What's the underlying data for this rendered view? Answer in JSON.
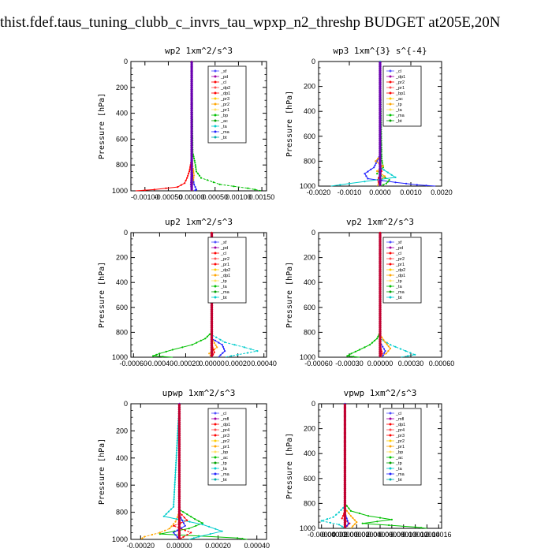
{
  "page_title": "thist.fdef.taus_tuning_clubb_c_invrs_tau_wpxp_n2_threshp  BUDGET at205E,20N",
  "chart_data": [
    {
      "type": "line",
      "title": "wp2  1xm^2/s^3",
      "ylabel": "Pressure [hPa]",
      "ylim": [
        1000,
        0
      ],
      "yticks": [
        "0",
        "200",
        "400",
        "600",
        "800",
        "1000"
      ],
      "xticks": [
        "-0.00100",
        "-0.00050",
        "0.00000",
        "0.00050",
        "0.00100",
        "0.00150"
      ],
      "xlim": [
        -0.0013,
        0.0016
      ],
      "legend": [
        "_sf",
        "_pd",
        "_cl",
        "_dp2",
        "_dp1",
        "_pr3",
        "_pr2",
        "_pr1",
        "_bp",
        "_ac",
        "_ta",
        "_ma",
        "_bt"
      ],
      "legend_position": "top-right",
      "series": [
        {
          "color": "#2020ff",
          "y": [
            0,
            700,
            880,
            950,
            990,
            1000
          ],
          "x": [
            0,
            0,
            2e-05,
            5e-05,
            0.0001,
            5e-05
          ]
        },
        {
          "color": "#00c000",
          "y": [
            0,
            700,
            800,
            850,
            900,
            950,
            980,
            1000
          ],
          "x": [
            0,
            2e-05,
            8e-05,
            0.0001,
            0.0002,
            0.0006,
            0.0012,
            0.0015
          ]
        },
        {
          "color": "#ff0000",
          "y": [
            0,
            750,
            850,
            900,
            940,
            970,
            990,
            1000
          ],
          "x": [
            0,
            0,
            -5e-05,
            -0.0001,
            -0.00015,
            -0.0003,
            -0.0008,
            -0.0012
          ]
        },
        {
          "color": "#ffa500",
          "y": [
            0,
            750,
            830,
            880,
            920,
            960,
            1000
          ],
          "x": [
            0,
            0,
            3e-05,
            5e-05,
            3e-05,
            1e-05,
            0
          ]
        },
        {
          "color": "#8000c0",
          "y": [
            0,
            850,
            950,
            1000
          ],
          "x": [
            0,
            0,
            -2e-05,
            0
          ]
        }
      ]
    },
    {
      "type": "line",
      "title": "wp3  1xm^{3} s^{-4}",
      "ylabel": "Pressure [hPa]",
      "ylim": [
        1000,
        0
      ],
      "yticks": [
        "0",
        "200",
        "400",
        "600",
        "800",
        "1000"
      ],
      "xticks": [
        "-0.0020",
        "-0.0010",
        "0.0000",
        "0.0010",
        "0.0020"
      ],
      "xlim": [
        -0.002,
        0.002
      ],
      "legend": [
        "_cl",
        "_dp1",
        "_pr2",
        "_pr1",
        "_bp1",
        "_ac",
        "_tp",
        "_ta",
        "_ma",
        "_bt"
      ],
      "legend_position": "top-right",
      "series": [
        {
          "color": "#2020ff",
          "y": [
            0,
            750,
            850,
            900,
            940,
            970,
            990,
            1000
          ],
          "x": [
            0,
            0,
            -0.0002,
            -0.0005,
            -0.0004,
            0.0005,
            0.0012,
            0.0018
          ]
        },
        {
          "color": "#00c000",
          "y": [
            0,
            780,
            850,
            900,
            950,
            980,
            1000
          ],
          "x": [
            0,
            5e-05,
            0.0001,
            -0.0001,
            0.0003,
            0.0002,
            0
          ]
        },
        {
          "color": "#ffa500",
          "y": [
            0,
            760,
            800,
            840,
            880,
            920,
            960,
            1000
          ],
          "x": [
            0,
            0,
            -0.00015,
            0.0001,
            -0.0001,
            0.00015,
            0,
            -0.0001
          ]
        },
        {
          "color": "#ff0000",
          "y": [
            0,
            800,
            880,
            950,
            1000
          ],
          "x": [
            0,
            0,
            5e-05,
            -8e-05,
            0
          ]
        },
        {
          "color": "#00cccc",
          "y": [
            0,
            850,
            930,
            980,
            1000
          ],
          "x": [
            0,
            0,
            0.0005,
            -0.001,
            -0.0016
          ]
        }
      ]
    },
    {
      "type": "line",
      "title": "up2  1xm^2/s^3",
      "ylabel": "Pressure [hPa]",
      "ylim": [
        1000,
        0
      ],
      "yticks": [
        "0",
        "200",
        "400",
        "600",
        "800",
        "1000"
      ],
      "xticks": [
        "-0.00060",
        "-0.00040",
        "-0.00020",
        "0.00000",
        "0.00020",
        "0.00040"
      ],
      "xlim": [
        -0.00062,
        0.00042
      ],
      "legend": [
        "_sf",
        "_pd",
        "_cl",
        "_pr2",
        "_pr1",
        "_dp2",
        "_dp1",
        "_tp",
        "_ta",
        "_ma",
        "_bt"
      ],
      "legend_position": "top-right",
      "series": [
        {
          "color": "#00c000",
          "y": [
            0,
            800,
            850,
            900,
            940,
            970,
            990,
            1000
          ],
          "x": [
            0,
            0,
            -5e-05,
            -0.00015,
            -0.0003,
            -0.0004,
            -0.00045,
            -0.0003
          ]
        },
        {
          "color": "#00cccc",
          "y": [
            0,
            820,
            880,
            920,
            950,
            980,
            1000
          ],
          "x": [
            0,
            0,
            0.0001,
            0.00025,
            0.00035,
            0.0002,
            0.0001
          ]
        },
        {
          "color": "#2020ff",
          "y": [
            0,
            850,
            900,
            950,
            1000
          ],
          "x": [
            0,
            0,
            8e-05,
            0.0001,
            5e-05
          ]
        },
        {
          "color": "#ffa500",
          "y": [
            0,
            850,
            920,
            970,
            1000
          ],
          "x": [
            0,
            0,
            4e-05,
            -2e-05,
            0
          ]
        },
        {
          "color": "#ff0000",
          "y": [
            0,
            900,
            960,
            1000
          ],
          "x": [
            0,
            0,
            2e-05,
            0
          ]
        }
      ]
    },
    {
      "type": "line",
      "title": "vp2  1xm^2/s^3",
      "ylabel": "Pressure [hPa]",
      "ylim": [
        1000,
        0
      ],
      "yticks": [
        "0",
        "200",
        "400",
        "600",
        "800",
        "1000"
      ],
      "xticks": [
        "-0.00060",
        "-0.00030",
        "0.00000",
        "0.00030",
        "0.00060"
      ],
      "xlim": [
        -0.0006,
        0.0006
      ],
      "legend": [
        "_sf",
        "_pd",
        "_cl",
        "_pr2",
        "_pr1",
        "_dp2",
        "_dp1",
        "_tp",
        "_ta",
        "_ma",
        "_bt"
      ],
      "legend_position": "top-right",
      "series": [
        {
          "color": "#00c000",
          "y": [
            0,
            800,
            850,
            900,
            940,
            970,
            990,
            1000
          ],
          "x": [
            0,
            0,
            -3e-05,
            -0.0001,
            -0.0002,
            -0.00028,
            -0.00032,
            -0.0002
          ]
        },
        {
          "color": "#00cccc",
          "y": [
            0,
            850,
            900,
            950,
            980,
            1000
          ],
          "x": [
            0,
            0,
            0.0001,
            0.00025,
            0.00034,
            0.0002
          ]
        },
        {
          "color": "#ffa500",
          "y": [
            0,
            820,
            880,
            930,
            970,
            1000
          ],
          "x": [
            0,
            0,
            5e-05,
            0.0001,
            6e-05,
            0
          ]
        },
        {
          "color": "#2020ff",
          "y": [
            0,
            880,
            950,
            1000
          ],
          "x": [
            0,
            0,
            5e-05,
            2e-05
          ]
        },
        {
          "color": "#ff0000",
          "y": [
            0,
            900,
            970,
            1000
          ],
          "x": [
            0,
            0,
            2e-05,
            0
          ]
        }
      ]
    },
    {
      "type": "line",
      "title": "upwp  1xm^2/s^3",
      "ylabel": "Pressure [hPa]",
      "ylim": [
        1000,
        0
      ],
      "yticks": [
        "0",
        "200",
        "400",
        "600",
        "800",
        "1000"
      ],
      "xticks": [
        "-0.00020",
        "0.00000",
        "0.00020",
        "0.00040"
      ],
      "xlim": [
        -0.00025,
        0.00045
      ],
      "legend": [
        "_cl",
        "_mfl",
        "_dp1",
        "_pr4",
        "_pr3",
        "_pr2",
        "_pr1",
        "_bp",
        "_ac",
        "_tp",
        "_ta",
        "_ma",
        "_bt"
      ],
      "legend_position": "top-right",
      "series": [
        {
          "color": "#00c000",
          "y": [
            0,
            780,
            850,
            880,
            920,
            960,
            990,
            1000
          ],
          "x": [
            0,
            0,
            8e-05,
            0.00012,
            5e-05,
            -0.0001,
            0.0003,
            0.00035
          ]
        },
        {
          "color": "#ffa500",
          "y": [
            0,
            800,
            870,
            920,
            950,
            980,
            1000
          ],
          "x": [
            0,
            0,
            -2e-05,
            -5e-05,
            -0.0001,
            -0.00018,
            -0.0002
          ]
        },
        {
          "color": "#00cccc",
          "y": [
            0,
            760,
            830,
            890,
            940,
            980,
            1000
          ],
          "x": [
            0,
            -3e-05,
            -8e-05,
            0.00012,
            0.00022,
            0.0001,
            5e-05
          ]
        },
        {
          "color": "#ff0000",
          "y": [
            0,
            800,
            860,
            900,
            950,
            1000
          ],
          "x": [
            0,
            0,
            4e-05,
            -3e-05,
            6e-05,
            0
          ]
        },
        {
          "color": "#2020ff",
          "y": [
            0,
            820,
            900,
            950,
            1000
          ],
          "x": [
            0,
            0,
            3e-05,
            -3e-05,
            0
          ]
        },
        {
          "color": "#8000c0",
          "y": [
            0,
            900,
            1000
          ],
          "x": [
            0,
            0,
            0
          ]
        }
      ]
    },
    {
      "type": "line",
      "title": "vpwp  1xm^2/s^3",
      "ylabel": "Pressure [hPa]",
      "ylim": [
        1000,
        0
      ],
      "yticks": [
        "0",
        "200",
        "400",
        "600",
        "800",
        "1000"
      ],
      "xticks": [
        "-0.00004",
        "-0.00002",
        "0.00000",
        "0.00002",
        "0.00004",
        "0.00006",
        "0.00008",
        "0.00010",
        "0.00012",
        "0.00014",
        "0.00016"
      ],
      "xlim": [
        -4.5e-05,
        0.000165
      ],
      "legend": [
        "_cl",
        "_mfl",
        "_dp1",
        "_pr4",
        "_pr3",
        "_pr2",
        "_pr1",
        "_bp",
        "_ac",
        "_tp",
        "_ta",
        "_ma",
        "_bt"
      ],
      "legend_position": "top-right",
      "series": [
        {
          "color": "#00c000",
          "y": [
            0,
            800,
            860,
            900,
            930,
            960,
            990,
            1000
          ],
          "x": [
            0,
            0,
            1e-05,
            4e-05,
            8e-05,
            3e-05,
            0.00012,
            0.00014
          ]
        },
        {
          "color": "#00cccc",
          "y": [
            0,
            820,
            870,
            910,
            940,
            970,
            1000
          ],
          "x": [
            0,
            0,
            -1e-05,
            -2e-05,
            -4e-05,
            -1e-05,
            0
          ]
        },
        {
          "color": "#ffa500",
          "y": [
            0,
            840,
            900,
            950,
            1000
          ],
          "x": [
            0,
            0,
            1e-05,
            2e-05,
            1e-05
          ]
        },
        {
          "color": "#ff0000",
          "y": [
            0,
            860,
            920,
            960,
            1000
          ],
          "x": [
            0,
            0,
            -5e-06,
            8e-06,
            0
          ]
        },
        {
          "color": "#2020ff",
          "y": [
            0,
            880,
            960,
            1000
          ],
          "x": [
            0,
            0,
            6e-06,
            0
          ]
        }
      ]
    }
  ]
}
